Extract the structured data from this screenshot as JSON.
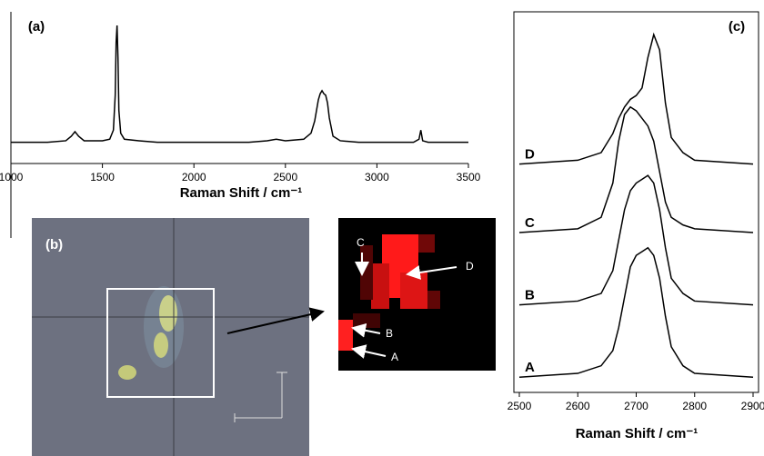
{
  "chart_data": [
    {
      "type": "line",
      "panel_label": "(a)",
      "xlabel": "Raman Shift / cm⁻¹",
      "x": [
        1000,
        1100,
        1200,
        1300,
        1330,
        1350,
        1370,
        1400,
        1500,
        1540,
        1560,
        1570,
        1575,
        1580,
        1585,
        1590,
        1600,
        1620,
        1700,
        1800,
        1900,
        2000,
        2100,
        2200,
        2300,
        2400,
        2450,
        2500,
        2600,
        2640,
        2660,
        2680,
        2690,
        2700,
        2710,
        2720,
        2730,
        2740,
        2760,
        2800,
        2900,
        3000,
        3100,
        3200,
        3230,
        3240,
        3250,
        3280,
        3400,
        3500
      ],
      "series": [
        {
          "color": "#000000",
          "values": [
            14,
            14,
            14,
            15,
            18,
            21,
            18,
            15,
            15,
            16,
            22,
            45,
            80,
            91,
            70,
            35,
            20,
            16,
            15,
            14,
            14,
            14,
            14,
            14,
            14,
            15,
            16,
            15,
            16,
            20,
            28,
            42,
            46,
            48,
            46,
            45,
            40,
            30,
            18,
            15,
            14,
            14,
            14,
            14,
            16,
            22,
            15,
            14,
            14,
            14
          ]
        }
      ],
      "xlim": [
        1000,
        3500
      ],
      "xticks": [
        1000,
        1500,
        2000,
        2500,
        3000,
        3500
      ],
      "ylim": [
        0,
        100
      ]
    },
    {
      "type": "line",
      "panel_label": "(c)",
      "xlabel": "Raman Shift / cm⁻¹",
      "x": [
        2500,
        2600,
        2640,
        2660,
        2670,
        2680,
        2690,
        2700,
        2710,
        2720,
        2730,
        2740,
        2750,
        2760,
        2780,
        2800,
        2900
      ],
      "series": [
        {
          "name": "A",
          "color": "#000000",
          "values": [
            4,
            5,
            7,
            11,
            17,
            25,
            33,
            36,
            37,
            38,
            36,
            30,
            20,
            12,
            7,
            5,
            4
          ]
        },
        {
          "name": "B",
          "color": "#000000",
          "values": [
            23,
            24,
            26,
            32,
            40,
            48,
            53,
            55,
            56,
            57,
            55,
            48,
            38,
            30,
            26,
            24,
            23
          ]
        },
        {
          "name": "C",
          "color": "#000000",
          "values": [
            42,
            43,
            46,
            55,
            66,
            73,
            75,
            74,
            72,
            70,
            66,
            58,
            50,
            46,
            44,
            43,
            42
          ]
        },
        {
          "name": "D",
          "color": "#000000",
          "values": [
            60,
            61,
            63,
            68,
            72,
            75,
            77,
            78,
            80,
            88,
            94,
            90,
            76,
            67,
            63,
            61,
            60
          ]
        }
      ],
      "xlim": [
        2500,
        2900
      ],
      "xticks": [
        2500,
        2600,
        2700,
        2800,
        2900
      ],
      "ylim": [
        0,
        100
      ]
    }
  ],
  "image_panel": {
    "label": "(b)",
    "map_labels": [
      "C",
      "D",
      "B",
      "A"
    ]
  }
}
